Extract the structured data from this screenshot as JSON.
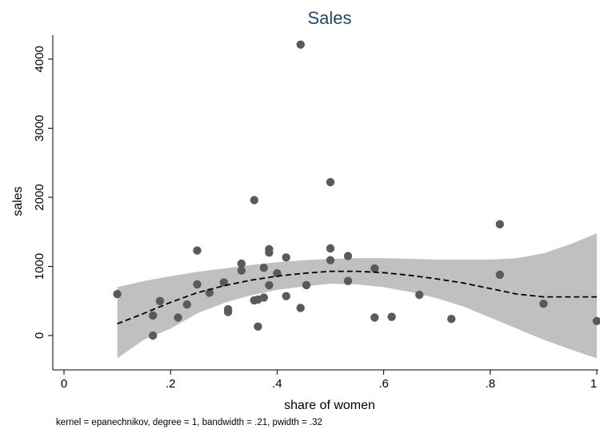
{
  "chart_data": {
    "type": "scatter",
    "title": "Sales",
    "xlabel": "share of women",
    "ylabel": "sales",
    "note": "kernel = epanechnikov, degree = 1, bandwidth = .21, pwidth = .32",
    "xlim": [
      0,
      1
    ],
    "ylim": [
      -500,
      4400
    ],
    "xticks": [
      0,
      0.2,
      0.4,
      0.6,
      0.8,
      1
    ],
    "xtick_labels": [
      "0",
      ".2",
      ".4",
      ".6",
      ".8",
      "1"
    ],
    "yticks": [
      0,
      1000,
      2000,
      3000,
      4000
    ],
    "ytick_labels": [
      "0",
      "1000",
      "2000",
      "3000",
      "4000"
    ],
    "grid": false,
    "colors": {
      "points": "#5a5a5a",
      "band": "#c0c0c0",
      "fit": "#000000",
      "title": "#1a476f"
    },
    "points": [
      [
        0.1,
        600
      ],
      [
        0.167,
        0
      ],
      [
        0.167,
        290
      ],
      [
        0.18,
        500
      ],
      [
        0.214,
        260
      ],
      [
        0.231,
        450
      ],
      [
        0.25,
        740
      ],
      [
        0.25,
        1230
      ],
      [
        0.273,
        620
      ],
      [
        0.3,
        770
      ],
      [
        0.308,
        380
      ],
      [
        0.308,
        340
      ],
      [
        0.333,
        1040
      ],
      [
        0.333,
        940
      ],
      [
        0.357,
        1960
      ],
      [
        0.357,
        510
      ],
      [
        0.364,
        520
      ],
      [
        0.364,
        130
      ],
      [
        0.375,
        980
      ],
      [
        0.375,
        550
      ],
      [
        0.385,
        1250
      ],
      [
        0.385,
        1200
      ],
      [
        0.385,
        730
      ],
      [
        0.4,
        900
      ],
      [
        0.417,
        1130
      ],
      [
        0.417,
        570
      ],
      [
        0.444,
        4210
      ],
      [
        0.444,
        400
      ],
      [
        0.455,
        730
      ],
      [
        0.5,
        2220
      ],
      [
        0.5,
        1260
      ],
      [
        0.5,
        1090
      ],
      [
        0.533,
        1150
      ],
      [
        0.533,
        790
      ],
      [
        0.583,
        970
      ],
      [
        0.583,
        260
      ],
      [
        0.615,
        270
      ],
      [
        0.667,
        590
      ],
      [
        0.727,
        240
      ],
      [
        0.818,
        1610
      ],
      [
        0.818,
        880
      ],
      [
        0.9,
        460
      ],
      [
        1.0,
        210
      ]
    ],
    "fit_line": {
      "x": [
        0.1,
        0.15,
        0.2,
        0.25,
        0.3,
        0.35,
        0.4,
        0.45,
        0.5,
        0.55,
        0.6,
        0.65,
        0.7,
        0.75,
        0.8,
        0.85,
        0.9,
        0.95,
        1.0
      ],
      "y": [
        170,
        320,
        480,
        620,
        720,
        800,
        860,
        900,
        930,
        930,
        910,
        870,
        820,
        760,
        680,
        600,
        560,
        560,
        560
      ]
    },
    "ci_band": {
      "x": [
        0.1,
        0.15,
        0.2,
        0.25,
        0.3,
        0.35,
        0.4,
        0.45,
        0.5,
        0.55,
        0.6,
        0.65,
        0.7,
        0.75,
        0.8,
        0.85,
        0.9,
        0.95,
        1.0
      ],
      "upper": [
        700,
        790,
        860,
        920,
        970,
        1020,
        1060,
        1090,
        1110,
        1120,
        1120,
        1110,
        1100,
        1100,
        1100,
        1120,
        1190,
        1320,
        1480
      ],
      "lower": [
        -330,
        -60,
        100,
        320,
        470,
        580,
        660,
        710,
        750,
        740,
        700,
        630,
        540,
        420,
        260,
        100,
        -60,
        -200,
        -330
      ]
    }
  }
}
